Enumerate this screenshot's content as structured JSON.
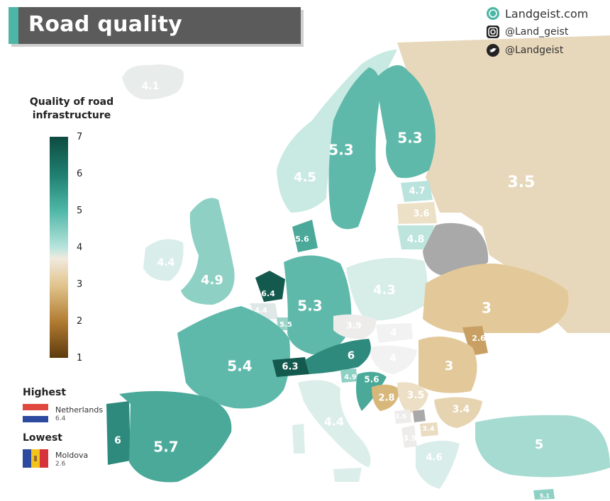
{
  "title": "Road quality",
  "brand": {
    "website": "Landgeist.com",
    "instagram": "@Land_geist",
    "twitter": "@Landgeist"
  },
  "legend": {
    "title_line1": "Quality of road",
    "title_line2": "infrastructure",
    "ticks": [
      "7",
      "6",
      "5",
      "4",
      "3",
      "2",
      "1"
    ],
    "color_low": "#5d3b0e",
    "color_mid": "#f1eadf",
    "color_high": "#0e4a40"
  },
  "extremes": {
    "highest_label": "Highest",
    "highest_country": "Netherlands",
    "highest_value": "6.4",
    "lowest_label": "Lowest",
    "lowest_country": "Moldova",
    "lowest_value": "2.6"
  },
  "map_values": {
    "iceland": "4.1",
    "russia": "3.5",
    "finland": "5.3",
    "sweden": "5.3",
    "norway": "4.5",
    "estonia": "4.7",
    "latvia": "3.6",
    "lithuania": "4.8",
    "denmark": "5.6",
    "ireland": "4.4",
    "uk": "4.9",
    "netherlands": "6.4",
    "belgium": "4.4",
    "luxembourg": "5.5",
    "germany": "5.3",
    "poland": "4.3",
    "czechia": "3.9",
    "slovakia": "4",
    "hungary": "4",
    "ukraine": "3",
    "moldova": "2.6",
    "romania": "3",
    "france": "5.4",
    "switzerland": "6.3",
    "austria": "6",
    "slovenia": "4.9",
    "croatia": "5.6",
    "bosnia": "2.8",
    "serbia": "3.5",
    "montenegro": "3.9",
    "north_macedonia": "3.4",
    "albania": "3.9",
    "bulgaria": "3.4",
    "italy": "4.4",
    "portugal": "6",
    "spain": "5.7",
    "greece": "4.6",
    "turkey": "5",
    "cyprus": "5.1"
  }
}
